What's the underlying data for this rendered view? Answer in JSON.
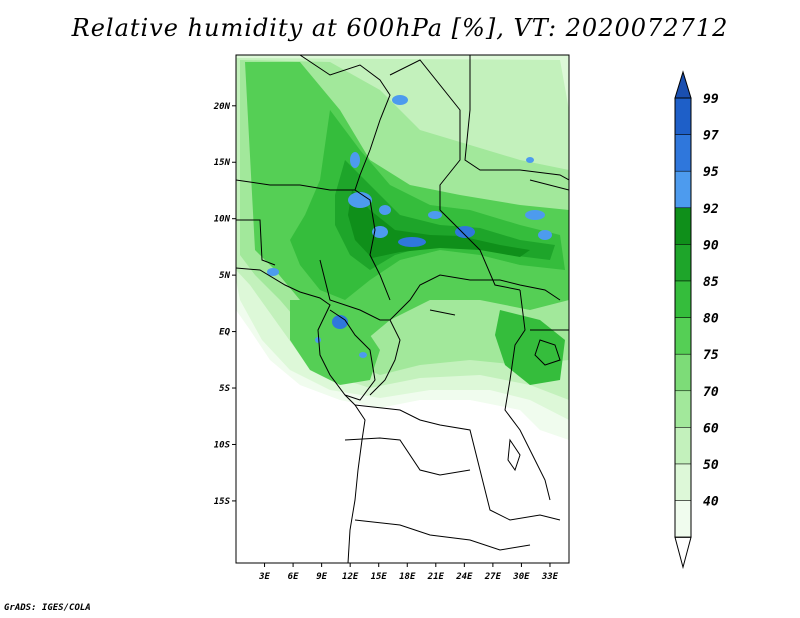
{
  "title": "Relative humidity at 600hPa [%], VT: 2020072712",
  "credit": "GrADS: IGES/COLA",
  "map": {
    "lat_labels": [
      {
        "label": "20N",
        "lat": 20
      },
      {
        "label": "15N",
        "lat": 15
      },
      {
        "label": "10N",
        "lat": 10
      },
      {
        "label": "5N",
        "lat": 5
      },
      {
        "label": "EQ",
        "lat": 0
      },
      {
        "label": "5S",
        "lat": -5
      },
      {
        "label": "10S",
        "lat": -10
      },
      {
        "label": "15S",
        "lat": -15
      }
    ],
    "lon_labels": [
      {
        "label": "3E",
        "lon": 3
      },
      {
        "label": "6E",
        "lon": 6
      },
      {
        "label": "9E",
        "lon": 9
      },
      {
        "label": "12E",
        "lon": 12
      },
      {
        "label": "15E",
        "lon": 15
      },
      {
        "label": "18E",
        "lon": 18
      },
      {
        "label": "21E",
        "lon": 21
      },
      {
        "label": "24E",
        "lon": 24
      },
      {
        "label": "27E",
        "lon": 27
      },
      {
        "label": "30E",
        "lon": 30
      },
      {
        "label": "33E",
        "lon": 33
      }
    ]
  },
  "colorbar": {
    "levels": [
      {
        "label": "99",
        "color": "#1e5fc8"
      },
      {
        "label": "97",
        "color": "#2f77dc"
      },
      {
        "label": "95",
        "color": "#4d9bee"
      },
      {
        "label": "92",
        "color": "#0f8f1a"
      },
      {
        "label": "90",
        "color": "#1ea52a"
      },
      {
        "label": "85",
        "color": "#35bd3c"
      },
      {
        "label": "80",
        "color": "#55cf55"
      },
      {
        "label": "75",
        "color": "#7ddc78"
      },
      {
        "label": "70",
        "color": "#a2e89b"
      },
      {
        "label": "60",
        "color": "#c3f1bc"
      },
      {
        "label": "50",
        "color": "#ddf8d8"
      },
      {
        "label": "40",
        "color": "#f0fcee"
      }
    ],
    "top_color": "#1a4fb0",
    "bottom_color": "#ffffff"
  }
}
